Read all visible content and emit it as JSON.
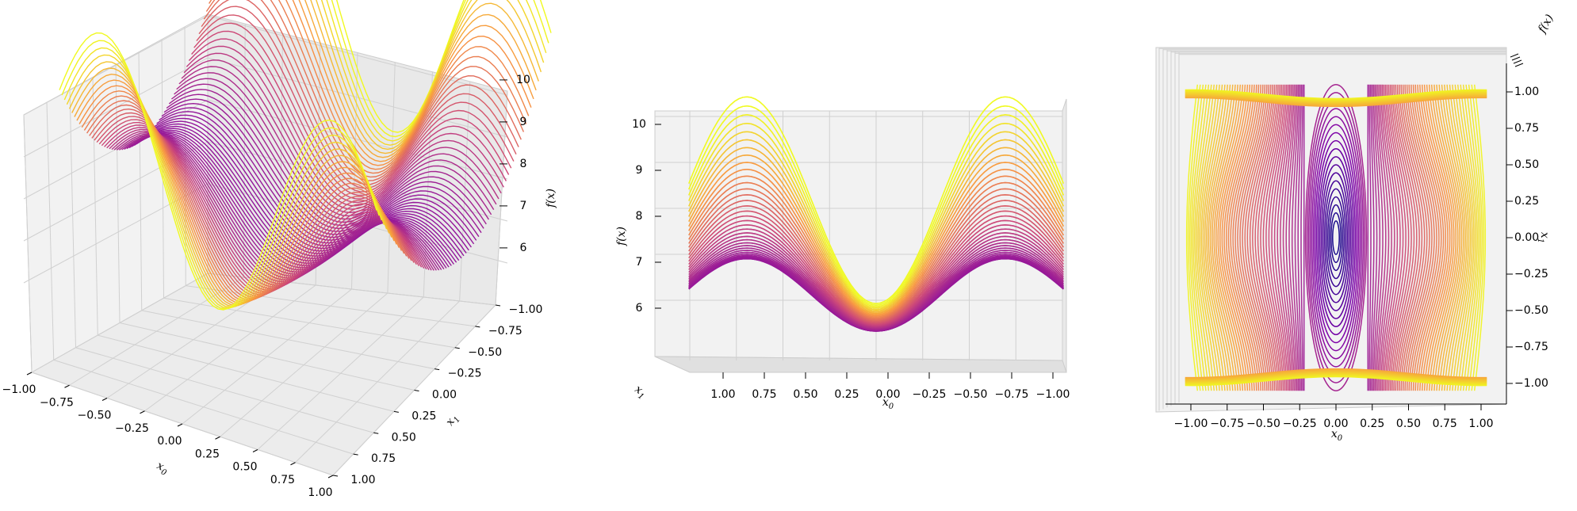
{
  "chart_data": [
    {
      "type": "surface3d",
      "view": "perspective",
      "xlabel": "x_0",
      "ylabel": "x_1",
      "zlabel": "f(x)",
      "x_ticks": [
        "−1.00",
        "−0.75",
        "−0.50",
        "−0.25",
        "0.00",
        "0.25",
        "0.50",
        "0.75",
        "1.00"
      ],
      "y_ticks": [
        "−1.00",
        "−0.75",
        "−0.50",
        "−0.25",
        "0.00",
        "0.25",
        "0.50",
        "0.75",
        "1.00"
      ],
      "z_ticks": [
        "6",
        "7",
        "8",
        "9",
        "10"
      ],
      "xlim": [
        -1,
        1
      ],
      "ylim": [
        -1,
        1
      ],
      "zlim": [
        5.3,
        10
      ],
      "colormap": "plasma",
      "contour_levels": 80
    },
    {
      "type": "surface3d",
      "view": "side",
      "xlabel": "x_0",
      "ylabel": "x_1",
      "zlabel": "f(x)",
      "x_ticks": [
        "1.00",
        "0.75",
        "0.50",
        "0.25",
        "0.00",
        "−0.25",
        "−0.50",
        "−0.75",
        "−1.00"
      ],
      "z_ticks": [
        "6",
        "7",
        "8",
        "9",
        "10"
      ],
      "xlim": [
        -1,
        1
      ],
      "zlim": [
        5.3,
        10
      ],
      "colormap": "plasma"
    },
    {
      "type": "contour",
      "view": "top",
      "xlabel": "x_0",
      "ylabel": "x_1",
      "zlabel": "f(x)",
      "x_ticks": [
        "−1.00",
        "−0.75",
        "−0.50",
        "−0.25",
        "0.00",
        "0.25",
        "0.50",
        "0.75",
        "1.00"
      ],
      "y_ticks": [
        "1.00",
        "0.75",
        "0.50",
        "0.25",
        "0.00",
        "−0.25",
        "−0.50",
        "−0.75",
        "−1.00"
      ],
      "xlim": [
        -1,
        1
      ],
      "ylim": [
        -1,
        1
      ],
      "colormap": "plasma"
    }
  ],
  "colors": {
    "low": "#0d0887",
    "mid_low": "#7e03a8",
    "mid": "#cc4778",
    "mid_high": "#f89540",
    "high": "#f0f921",
    "pane": "#f2f2f2",
    "grid": "#d0d0d0"
  }
}
